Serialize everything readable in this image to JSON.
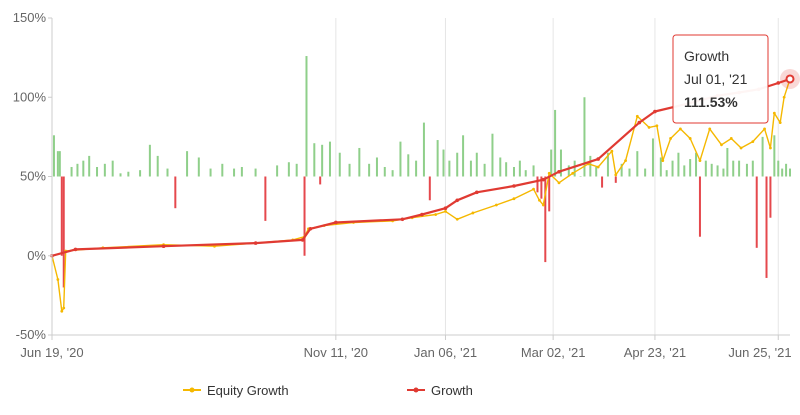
{
  "chart_data": {
    "type": "line",
    "title": "",
    "xlabel": "",
    "ylabel": "",
    "ylim": [
      -50,
      150
    ],
    "y_ticks": [
      "-50%",
      "0%",
      "50%",
      "100%",
      "150%"
    ],
    "y_tick_values": [
      -50,
      0,
      50,
      100,
      150
    ],
    "x_ticks": [
      "Jun 19, '20",
      "Nov 11, '20",
      "Jan 06, '21",
      "Mar 02, '21",
      "Apr 23, '21",
      "Jun 25, '21"
    ],
    "x_tick_dates": [
      "2020-06-19",
      "2020-11-11",
      "2021-01-06",
      "2021-03-02",
      "2021-04-23",
      "2021-06-25"
    ],
    "x_range": [
      "2020-06-19",
      "2021-07-01"
    ],
    "grid": "vertical lines at x ticks",
    "series": [
      {
        "name": "Equity Growth",
        "color": "#f5b800",
        "points": [
          [
            "2020-06-19",
            0
          ],
          [
            "2020-06-22",
            -15
          ],
          [
            "2020-06-24",
            -35
          ],
          [
            "2020-06-25",
            -33
          ],
          [
            "2020-06-26",
            3
          ],
          [
            "2020-07-15",
            5
          ],
          [
            "2020-08-15",
            7
          ],
          [
            "2020-09-10",
            6
          ],
          [
            "2020-10-01",
            8
          ],
          [
            "2020-10-20",
            10
          ],
          [
            "2020-10-26",
            12
          ],
          [
            "2020-10-28",
            17
          ],
          [
            "2020-11-05",
            19
          ],
          [
            "2020-11-20",
            21
          ],
          [
            "2020-12-10",
            22
          ],
          [
            "2020-12-20",
            24
          ],
          [
            "2021-01-01",
            26
          ],
          [
            "2021-01-06",
            28
          ],
          [
            "2021-01-12",
            23
          ],
          [
            "2021-01-20",
            27
          ],
          [
            "2021-02-01",
            32
          ],
          [
            "2021-02-10",
            36
          ],
          [
            "2021-02-20",
            42
          ],
          [
            "2021-02-23",
            35
          ],
          [
            "2021-02-25",
            32
          ],
          [
            "2021-02-28",
            52
          ],
          [
            "2021-03-05",
            46
          ],
          [
            "2021-03-12",
            52
          ],
          [
            "2021-03-20",
            58
          ],
          [
            "2021-03-25",
            56
          ],
          [
            "2021-04-01",
            66
          ],
          [
            "2021-04-03",
            51
          ],
          [
            "2021-04-08",
            60
          ],
          [
            "2021-04-14",
            88
          ],
          [
            "2021-04-20",
            81
          ],
          [
            "2021-04-24",
            82
          ],
          [
            "2021-04-27",
            60
          ],
          [
            "2021-05-01",
            74
          ],
          [
            "2021-05-06",
            80
          ],
          [
            "2021-05-11",
            74
          ],
          [
            "2021-05-16",
            60
          ],
          [
            "2021-05-21",
            80
          ],
          [
            "2021-05-27",
            70
          ],
          [
            "2021-06-01",
            74
          ],
          [
            "2021-06-06",
            68
          ],
          [
            "2021-06-12",
            72
          ],
          [
            "2021-06-18",
            80
          ],
          [
            "2021-06-21",
            68
          ],
          [
            "2021-06-23",
            90
          ],
          [
            "2021-06-26",
            84
          ],
          [
            "2021-06-28",
            100
          ],
          [
            "2021-07-01",
            111.53
          ]
        ]
      },
      {
        "name": "Growth",
        "color": "#e03a32",
        "points": [
          [
            "2020-06-19",
            0
          ],
          [
            "2020-07-01",
            4
          ],
          [
            "2020-08-15",
            6
          ],
          [
            "2020-10-01",
            8
          ],
          [
            "2020-10-25",
            10
          ],
          [
            "2020-10-29",
            17
          ],
          [
            "2020-11-11",
            21
          ],
          [
            "2020-12-15",
            23
          ],
          [
            "2020-12-25",
            26
          ],
          [
            "2021-01-06",
            30
          ],
          [
            "2021-01-12",
            35
          ],
          [
            "2021-01-22",
            40
          ],
          [
            "2021-02-10",
            44
          ],
          [
            "2021-02-25",
            48
          ],
          [
            "2021-03-05",
            53
          ],
          [
            "2021-03-25",
            61
          ],
          [
            "2021-04-15",
            84
          ],
          [
            "2021-04-23",
            91
          ],
          [
            "2021-05-10",
            96
          ],
          [
            "2021-05-25",
            101
          ],
          [
            "2021-06-05",
            103
          ],
          [
            "2021-06-15",
            105
          ],
          [
            "2021-06-25",
            109
          ],
          [
            "2021-07-01",
            111.53
          ]
        ]
      }
    ],
    "bars_note": "daily result bars drawn from the 50% baseline",
    "bar_baseline": 50,
    "bars": [
      [
        "2020-06-20",
        76
      ],
      [
        "2020-06-22",
        66
      ],
      [
        "2020-06-23",
        66
      ],
      [
        "2020-06-24",
        0
      ],
      [
        "2020-06-25",
        -20
      ],
      [
        "2020-06-29",
        56
      ],
      [
        "2020-07-02",
        58
      ],
      [
        "2020-07-05",
        60
      ],
      [
        "2020-07-08",
        63
      ],
      [
        "2020-07-12",
        56
      ],
      [
        "2020-07-16",
        58
      ],
      [
        "2020-07-20",
        60
      ],
      [
        "2020-07-24",
        52
      ],
      [
        "2020-07-28",
        53
      ],
      [
        "2020-08-03",
        54
      ],
      [
        "2020-08-08",
        70
      ],
      [
        "2020-08-12",
        63
      ],
      [
        "2020-08-17",
        55
      ],
      [
        "2020-08-21",
        30
      ],
      [
        "2020-08-27",
        66
      ],
      [
        "2020-09-02",
        62
      ],
      [
        "2020-09-08",
        55
      ],
      [
        "2020-09-14",
        58
      ],
      [
        "2020-09-20",
        55
      ],
      [
        "2020-09-24",
        56
      ],
      [
        "2020-10-01",
        55
      ],
      [
        "2020-10-06",
        22
      ],
      [
        "2020-10-12",
        57
      ],
      [
        "2020-10-18",
        59
      ],
      [
        "2020-10-22",
        58
      ],
      [
        "2020-10-26",
        0
      ],
      [
        "2020-10-27",
        126
      ],
      [
        "2020-10-31",
        71
      ],
      [
        "2020-11-03",
        45
      ],
      [
        "2020-11-04",
        70
      ],
      [
        "2020-11-08",
        72
      ],
      [
        "2020-11-13",
        65
      ],
      [
        "2020-11-18",
        58
      ],
      [
        "2020-11-23",
        68
      ],
      [
        "2020-11-28",
        58
      ],
      [
        "2020-12-02",
        62
      ],
      [
        "2020-12-06",
        56
      ],
      [
        "2020-12-10",
        54
      ],
      [
        "2020-12-14",
        72
      ],
      [
        "2020-12-18",
        64
      ],
      [
        "2020-12-22",
        60
      ],
      [
        "2020-12-26",
        84
      ],
      [
        "2020-12-29",
        35
      ],
      [
        "2021-01-02",
        73
      ],
      [
        "2021-01-05",
        67
      ],
      [
        "2021-01-08",
        60
      ],
      [
        "2021-01-12",
        65
      ],
      [
        "2021-01-15",
        76
      ],
      [
        "2021-01-19",
        60
      ],
      [
        "2021-01-22",
        65
      ],
      [
        "2021-01-26",
        58
      ],
      [
        "2021-01-30",
        77
      ],
      [
        "2021-02-03",
        62
      ],
      [
        "2021-02-06",
        59
      ],
      [
        "2021-02-10",
        56
      ],
      [
        "2021-02-13",
        60
      ],
      [
        "2021-02-16",
        54
      ],
      [
        "2021-02-20",
        57
      ],
      [
        "2021-02-22",
        40
      ],
      [
        "2021-02-24",
        36
      ],
      [
        "2021-02-26",
        -4
      ],
      [
        "2021-02-28",
        28
      ],
      [
        "2021-03-01",
        67
      ],
      [
        "2021-03-03",
        92
      ],
      [
        "2021-03-06",
        67
      ],
      [
        "2021-03-10",
        57
      ],
      [
        "2021-03-13",
        60
      ],
      [
        "2021-03-16",
        50
      ],
      [
        "2021-03-18",
        100
      ],
      [
        "2021-03-21",
        63
      ],
      [
        "2021-03-24",
        56
      ],
      [
        "2021-03-27",
        43
      ],
      [
        "2021-03-30",
        65
      ],
      [
        "2021-04-03",
        46
      ],
      [
        "2021-04-06",
        58
      ],
      [
        "2021-04-10",
        55
      ],
      [
        "2021-04-14",
        66
      ],
      [
        "2021-04-18",
        55
      ],
      [
        "2021-04-22",
        74
      ],
      [
        "2021-04-26",
        62
      ],
      [
        "2021-04-29",
        54
      ],
      [
        "2021-05-02",
        60
      ],
      [
        "2021-05-05",
        65
      ],
      [
        "2021-05-08",
        57
      ],
      [
        "2021-05-11",
        61
      ],
      [
        "2021-05-14",
        65
      ],
      [
        "2021-05-16",
        12
      ],
      [
        "2021-05-19",
        60
      ],
      [
        "2021-05-22",
        58
      ],
      [
        "2021-05-25",
        57
      ],
      [
        "2021-05-28",
        55
      ],
      [
        "2021-05-30",
        68
      ],
      [
        "2021-06-02",
        60
      ],
      [
        "2021-06-05",
        60
      ],
      [
        "2021-06-09",
        58
      ],
      [
        "2021-06-12",
        60
      ],
      [
        "2021-06-14",
        5
      ],
      [
        "2021-06-17",
        75
      ],
      [
        "2021-06-19",
        -14
      ],
      [
        "2021-06-21",
        24
      ],
      [
        "2021-06-23",
        76
      ],
      [
        "2021-06-25",
        60
      ],
      [
        "2021-06-27",
        55
      ],
      [
        "2021-06-29",
        58
      ],
      [
        "2021-07-01",
        55
      ]
    ],
    "legend_position": "bottom-center",
    "tooltip": {
      "title": "Growth",
      "date": "Jul 01, '21",
      "value": "111.53%"
    }
  }
}
